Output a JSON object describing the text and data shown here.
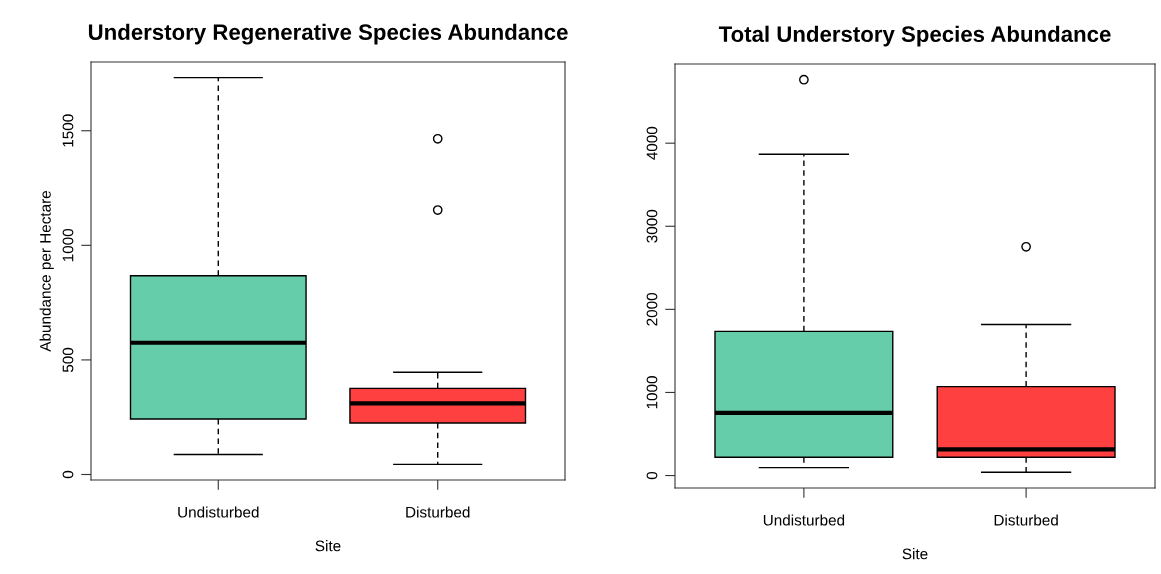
{
  "chart_data": [
    {
      "type": "box",
      "title": "Understory Regenerative Species Abundance",
      "xlabel": "Site",
      "ylabel": "Abundance per Hectare",
      "categories": [
        "Undisturbed",
        "Disturbed"
      ],
      "colors": [
        "#66cdaa",
        "#ff4040"
      ],
      "boxes": [
        {
          "low": 87,
          "q1": 242,
          "median": 575,
          "q3": 867,
          "high": 1732
        },
        {
          "low": 44,
          "q1": 225,
          "median": 310,
          "q3": 376,
          "high": 446,
          "outliers": [
            1154,
            1465
          ]
        }
      ],
      "ylim": [
        -24,
        1800
      ],
      "yticks": [
        0,
        500,
        1000,
        1500
      ]
    },
    {
      "type": "box",
      "title": "Total Understory Species Abundance",
      "xlabel": "Site",
      "categories": [
        "Undisturbed",
        "Disturbed"
      ],
      "colors": [
        "#66cdaa",
        "#ff4040"
      ],
      "boxes": [
        {
          "low": 95,
          "q1": 220,
          "median": 755,
          "q3": 1735,
          "high": 3866,
          "outliers": [
            4764
          ]
        },
        {
          "low": 39,
          "q1": 220,
          "median": 315,
          "q3": 1070,
          "high": 1817,
          "outliers": [
            2753
          ]
        }
      ],
      "ylim": [
        -150,
        4953
      ],
      "yticks": [
        0,
        1000,
        2000,
        3000,
        4000
      ]
    }
  ]
}
